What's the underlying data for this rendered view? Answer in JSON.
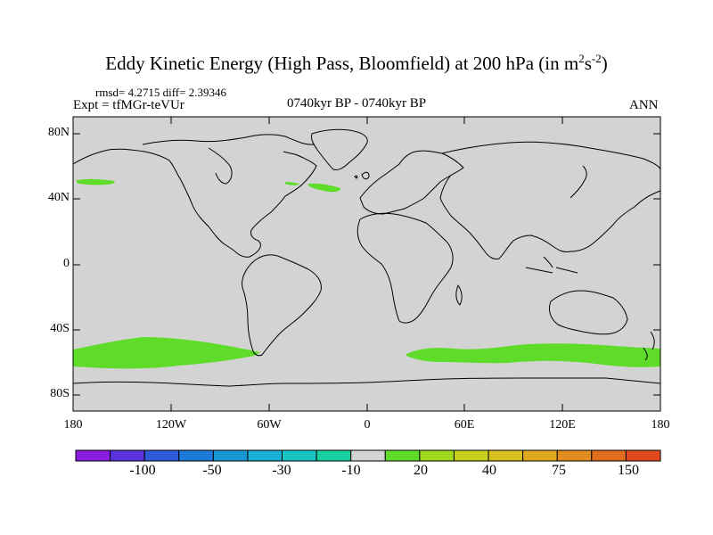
{
  "title": {
    "main": "Eddy Kinetic Energy (High Pass, Bloomfield) at 200 hPa (in m",
    "sup1": "2",
    "mid": "s",
    "sup2": "-2",
    "close": ")"
  },
  "stats": "rmsd= 4.2715  diff= 2.39346",
  "expt": "Expt = tfMGr-teVUr",
  "period": "0740kyr BP - 0740kyr BP",
  "season": "ANN",
  "lat_labels": [
    "80N",
    "40N",
    "0",
    "40S",
    "80S"
  ],
  "lon_labels": [
    "180",
    "120W",
    "60W",
    "0",
    "60E",
    "120E",
    "180"
  ],
  "colors": {
    "background": "#d3d3d3",
    "positive_fill": "#5fdc2a",
    "coastline": "#000000"
  },
  "colorbar": {
    "colors": [
      "#8a1ee0",
      "#5a32dc",
      "#2e5ad8",
      "#1e7ad8",
      "#1896d4",
      "#18b0d4",
      "#18c4c4",
      "#18d0a0",
      "#d3d3d3",
      "#5fdc2a",
      "#a0d81e",
      "#c8d01e",
      "#d8c01e",
      "#e0a81e",
      "#e08c1e",
      "#e06c1e",
      "#e04a1e"
    ],
    "labels": [
      "-100",
      "-50",
      "-30",
      "-10",
      "20",
      "40",
      "75",
      "150"
    ]
  }
}
